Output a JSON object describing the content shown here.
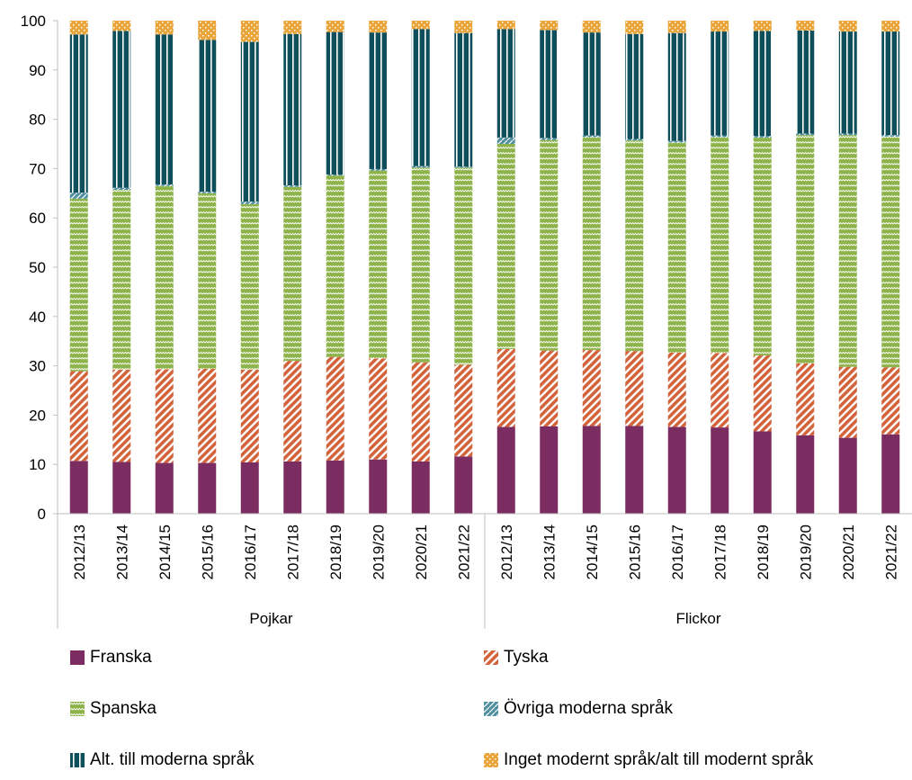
{
  "chart_data": {
    "type": "bar",
    "stacked": true,
    "ylim": [
      0,
      100
    ],
    "yticks": [
      0,
      10,
      20,
      30,
      40,
      50,
      60,
      70,
      80,
      90,
      100
    ],
    "gridlines": false,
    "legend_position": "bottom",
    "groups": [
      {
        "name": "Pojkar",
        "categories": [
          "2012/13",
          "2013/14",
          "2014/15",
          "2015/16",
          "2016/17",
          "2017/18",
          "2018/19",
          "2019/20",
          "2020/21",
          "2021/22"
        ]
      },
      {
        "name": "Flickor",
        "categories": [
          "2012/13",
          "2013/14",
          "2014/15",
          "2015/16",
          "2016/17",
          "2017/18",
          "2018/19",
          "2019/20",
          "2020/21",
          "2021/22"
        ]
      }
    ],
    "series": [
      {
        "name": "Franska",
        "color": "#7b2d62",
        "pattern": "solid",
        "values": [
          10.7,
          10.5,
          10.3,
          10.3,
          10.4,
          10.6,
          10.8,
          11.0,
          10.6,
          11.6,
          17.6,
          17.7,
          17.8,
          17.8,
          17.6,
          17.5,
          16.7,
          15.9,
          15.4,
          16.1
        ]
      },
      {
        "name": "Tyska",
        "color": "#d2633b",
        "pattern": "diagonal",
        "values": [
          18.2,
          18.7,
          19.0,
          19.1,
          18.8,
          20.4,
          21.0,
          20.5,
          20.1,
          18.6,
          15.8,
          15.4,
          15.4,
          15.2,
          15.1,
          15.1,
          15.4,
          14.6,
          14.4,
          13.6
        ]
      },
      {
        "name": "Spanska",
        "color": "#8db34a",
        "pattern": "zigzag",
        "values": [
          35.0,
          36.5,
          37.2,
          35.6,
          33.6,
          35.3,
          36.8,
          38.1,
          39.5,
          40.0,
          41.6,
          42.7,
          43.2,
          42.7,
          42.6,
          43.8,
          44.2,
          46.3,
          47.0,
          46.8
        ]
      },
      {
        "name": "Övriga moderna språk",
        "color": "#4f8fa0",
        "pattern": "dotted",
        "values": [
          1.2,
          0.4,
          0.3,
          0.3,
          0.5,
          0.3,
          0.2,
          0.3,
          0.3,
          0.2,
          1.3,
          0.4,
          0.3,
          0.3,
          0.3,
          0.3,
          0.3,
          0.3,
          0.3,
          0.3
        ]
      },
      {
        "name": "Alt. till moderna språk",
        "color": "#0f4f5c",
        "pattern": "vertical",
        "values": [
          32.1,
          31.8,
          30.4,
          30.8,
          32.4,
          30.7,
          28.9,
          27.7,
          27.8,
          27.1,
          22.0,
          21.9,
          20.9,
          21.3,
          21.9,
          21.1,
          21.3,
          20.9,
          20.7,
          21.0
        ]
      },
      {
        "name": "Inget modernt språk/alt till modernt språk",
        "color": "#e9a53a",
        "pattern": "checker",
        "values": [
          2.8,
          2.1,
          2.8,
          3.9,
          4.3,
          2.7,
          2.3,
          2.4,
          1.7,
          2.5,
          1.7,
          1.9,
          2.4,
          2.7,
          2.5,
          2.2,
          2.1,
          2.0,
          2.2,
          2.2
        ]
      }
    ]
  }
}
